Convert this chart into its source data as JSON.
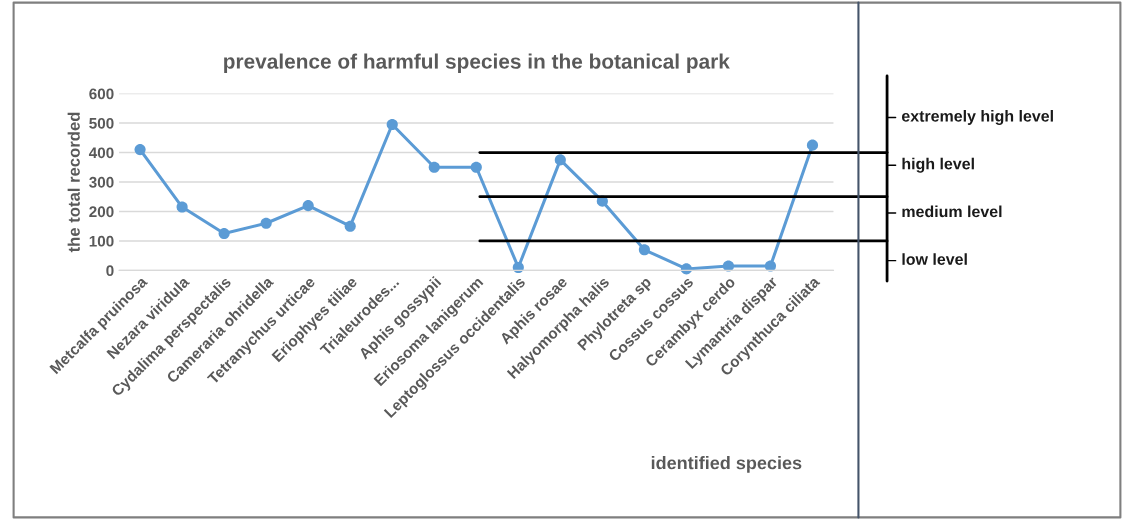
{
  "chart_data": {
    "type": "line",
    "title": "prevalence of harmful species in the botanical park",
    "xlabel": "identified species",
    "ylabel": "the total recorded",
    "categories": [
      "Metcalfa pruinosa",
      "Nezara viridula",
      "Cydalima perspectalis",
      "Cameraria ohridella",
      "Tetranychus urticae",
      "Eriophyes tiliae",
      "Trialeurodes...",
      "Aphis gossypii",
      "Eriosoma lanigerum",
      "Leptoglossus occidentalis",
      "Aphis rosae",
      "Halyomorpha halis",
      "Phylotreta sp",
      "Cossus cossus",
      "Cerambyx cerdo",
      "Lymantria dispar",
      "Corynthuca ciliata"
    ],
    "series": [
      {
        "color": "#5b9bd5",
        "values": [
          410,
          215,
          125,
          160,
          220,
          150,
          495,
          350,
          350,
          10,
          375,
          235,
          70,
          5,
          15,
          15,
          425
        ]
      }
    ],
    "ylim": [
      0,
      600
    ],
    "yticks": [
      0,
      100,
      200,
      300,
      400,
      500,
      600
    ],
    "grid": "y",
    "marker": "circle",
    "line_style": "solid",
    "ref_lines": [
      {
        "axis": "y",
        "value": 100,
        "color": "#000000"
      },
      {
        "axis": "y",
        "value": 250,
        "color": "#000000"
      },
      {
        "axis": "y",
        "value": 400,
        "color": "#000000"
      }
    ],
    "annotations": [
      "extremely high level",
      "high level",
      "medium level",
      "low level"
    ]
  }
}
